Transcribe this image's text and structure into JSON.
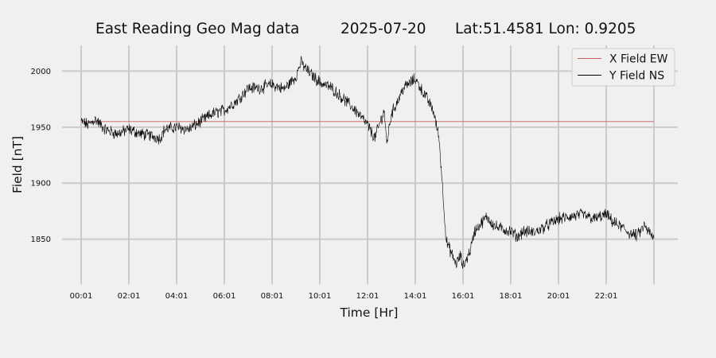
{
  "chart_data": {
    "type": "line",
    "title": {
      "site": "East Reading Geo Mag data",
      "date": "2025-07-20",
      "location": "Lat:51.4581  Lon: 0.9205"
    },
    "xlabel": "Time  [Hr]",
    "ylabel": "Field  [nT]",
    "x_unit": "hours after 00:01",
    "xlim": [
      -0.8,
      25.0
    ],
    "ylim": [
      1810,
      2023
    ],
    "xticks": [
      {
        "x": 0,
        "label": "00:01"
      },
      {
        "x": 2,
        "label": "02:01"
      },
      {
        "x": 4,
        "label": "04:01"
      },
      {
        "x": 6,
        "label": "06:01"
      },
      {
        "x": 8,
        "label": "08:01"
      },
      {
        "x": 10,
        "label": "10:01"
      },
      {
        "x": 12,
        "label": "12:01"
      },
      {
        "x": 14,
        "label": "14:01"
      },
      {
        "x": 16,
        "label": "16:01"
      },
      {
        "x": 18,
        "label": "18:01"
      },
      {
        "x": 20,
        "label": "20:01"
      },
      {
        "x": 22,
        "label": "22:01"
      }
    ],
    "yticks": [
      1850,
      1900,
      1950,
      2000
    ],
    "grid": true,
    "legend_position": "top-right",
    "series": [
      {
        "name": "X Field EW",
        "color": "#cd5c5c",
        "x": [
          0,
          24
        ],
        "y": [
          1955,
          1955
        ]
      },
      {
        "name": "Y Field NS",
        "color": "#000000",
        "x": [
          0,
          0.3,
          0.6,
          1.0,
          1.5,
          2.0,
          2.5,
          3.0,
          3.3,
          3.5,
          4.0,
          4.5,
          5.0,
          5.5,
          6.0,
          6.3,
          6.5,
          7.0,
          7.5,
          8.0,
          8.5,
          9.0,
          9.2,
          9.5,
          10.0,
          10.5,
          11.0,
          11.5,
          12.0,
          12.3,
          12.7,
          12.8,
          13.0,
          13.3,
          13.5,
          14.0,
          14.5,
          14.75,
          14.9,
          15.0,
          15.3,
          15.5,
          15.7,
          15.9,
          16.0,
          16.3,
          16.5,
          16.8,
          17.0,
          17.3,
          17.5,
          18.0,
          18.3,
          18.5,
          19.0,
          19.5,
          20.0,
          20.5,
          21.0,
          21.5,
          22.0,
          22.3,
          22.7,
          23.0,
          23.3,
          23.6,
          24.0
        ],
        "y": [
          1955,
          1952,
          1957,
          1948,
          1944,
          1948,
          1944,
          1942,
          1940,
          1948,
          1950,
          1948,
          1955,
          1962,
          1965,
          1970,
          1973,
          1985,
          1985,
          1988,
          1984,
          1995,
          2008,
          2000,
          1990,
          1985,
          1975,
          1965,
          1952,
          1940,
          1965,
          1935,
          1962,
          1975,
          1985,
          1993,
          1975,
          1965,
          1950,
          1940,
          1848,
          1838,
          1828,
          1835,
          1825,
          1840,
          1858,
          1865,
          1870,
          1862,
          1860,
          1857,
          1852,
          1857,
          1856,
          1862,
          1868,
          1870,
          1872,
          1868,
          1872,
          1865,
          1860,
          1855,
          1853,
          1862,
          1850
        ]
      }
    ]
  }
}
